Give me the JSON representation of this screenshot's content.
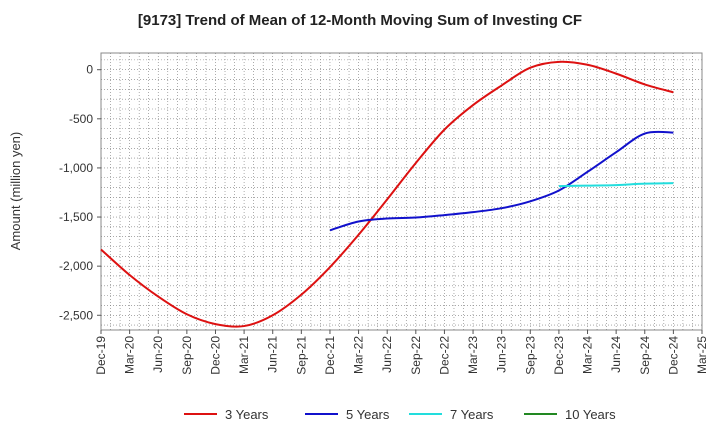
{
  "chart_data": {
    "type": "line",
    "title": "[9173]  Trend of Mean of 12-Month Moving Sum of Investing CF",
    "xlabel": "",
    "ylabel": "Amount (million yen)",
    "ylim": [
      -2650,
      170
    ],
    "y_ticks": [
      0,
      -500,
      -1000,
      -1500,
      -2000,
      -2500
    ],
    "y_tick_labels": [
      "0",
      "-500",
      "-1,000",
      "-1,500",
      "-2,000",
      "-2,500"
    ],
    "x_tick_labels": [
      "Dec-19",
      "Mar-20",
      "Jun-20",
      "Sep-20",
      "Dec-20",
      "Mar-21",
      "Jun-21",
      "Sep-21",
      "Dec-21",
      "Mar-22",
      "Jun-22",
      "Sep-22",
      "Dec-22",
      "Mar-23",
      "Jun-23",
      "Sep-23",
      "Dec-23",
      "Mar-24",
      "Jun-24",
      "Sep-24",
      "Dec-24",
      "Mar-25"
    ],
    "grid": true,
    "legend_position": "bottom",
    "series": [
      {
        "name": "3 Years",
        "color": "#dd1111",
        "points": [
          [
            "Dec-19",
            -1830
          ],
          [
            "Mar-20",
            -2090
          ],
          [
            "Jun-20",
            -2310
          ],
          [
            "Sep-20",
            -2490
          ],
          [
            "Dec-20",
            -2590
          ],
          [
            "Mar-21",
            -2610
          ],
          [
            "Jun-21",
            -2500
          ],
          [
            "Sep-21",
            -2290
          ],
          [
            "Dec-21",
            -2010
          ],
          [
            "Mar-22",
            -1680
          ],
          [
            "Jun-22",
            -1320
          ],
          [
            "Sep-22",
            -950
          ],
          [
            "Dec-22",
            -610
          ],
          [
            "Mar-23",
            -360
          ],
          [
            "Jun-23",
            -160
          ],
          [
            "Sep-23",
            20
          ],
          [
            "Dec-23",
            80
          ],
          [
            "Mar-24",
            50
          ],
          [
            "Jun-24",
            -40
          ],
          [
            "Sep-24",
            -150
          ],
          [
            "Dec-24",
            -230
          ]
        ]
      },
      {
        "name": "5 Years",
        "color": "#1111cc",
        "points": [
          [
            "Dec-21",
            -1635
          ],
          [
            "Mar-22",
            -1545
          ],
          [
            "Jun-22",
            -1515
          ],
          [
            "Sep-22",
            -1505
          ],
          [
            "Dec-22",
            -1480
          ],
          [
            "Mar-23",
            -1450
          ],
          [
            "Jun-23",
            -1410
          ],
          [
            "Sep-23",
            -1340
          ],
          [
            "Dec-23",
            -1230
          ],
          [
            "Mar-24",
            -1040
          ],
          [
            "Jun-24",
            -840
          ],
          [
            "Sep-24",
            -650
          ],
          [
            "Dec-24",
            -640
          ]
        ]
      },
      {
        "name": "7 Years",
        "color": "#22dddd",
        "points": [
          [
            "Dec-23",
            -1185
          ],
          [
            "Mar-24",
            -1180
          ],
          [
            "Jun-24",
            -1175
          ],
          [
            "Sep-24",
            -1160
          ],
          [
            "Dec-24",
            -1155
          ]
        ]
      },
      {
        "name": "10 Years",
        "color": "#228822",
        "points": []
      }
    ]
  }
}
